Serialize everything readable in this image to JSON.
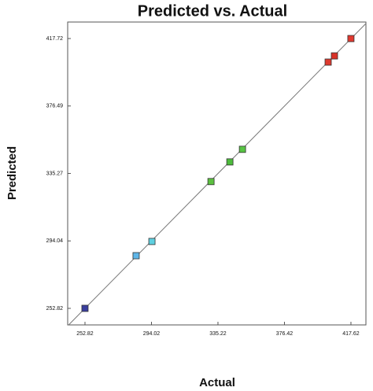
{
  "chart_data": {
    "type": "scatter",
    "title": "Predicted vs. Actual",
    "x_label": "Actual",
    "y_label": "Predicted",
    "x": [
      252.82,
      284.5,
      294.3,
      330.9,
      342.6,
      350.4,
      403.5,
      407.4,
      417.6
    ],
    "values": [
      252.82,
      285.0,
      293.7,
      330.3,
      342.3,
      350.0,
      403.3,
      407.1,
      417.7
    ],
    "colors": [
      "#3a3f9e",
      "#5fb6e8",
      "#5fd0e0",
      "#5cc040",
      "#4dbb3c",
      "#58c444",
      "#dd3a2e",
      "#d83228",
      "#e0392f"
    ],
    "xlim": [
      242.1,
      426.9
    ],
    "ylim": [
      242.7,
      427.8
    ],
    "xticks": [
      252.82,
      294.02,
      335.22,
      376.42,
      417.62
    ],
    "yticks": [
      252.82,
      294.04,
      335.27,
      376.49,
      417.72
    ],
    "grid": false
  }
}
